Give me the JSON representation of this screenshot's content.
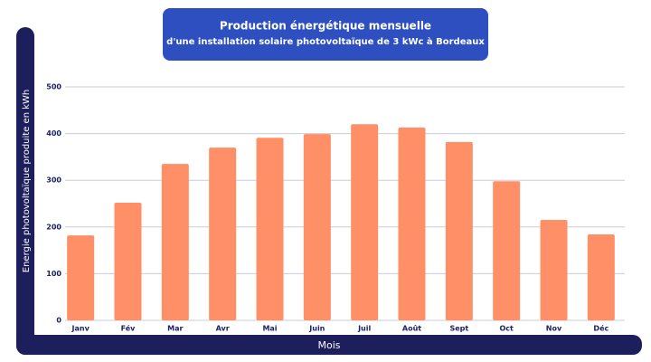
{
  "chart_data": {
    "type": "bar",
    "title": "Production énergétique mensuelle",
    "subtitle": "d'une installation solaire photovoltaïque de 3 kWc à Bordeaux",
    "y_label": "Energie photovoltaïque produite en kWh",
    "x_label": "Mois",
    "categories": [
      "Janv",
      "Fév",
      "Mar",
      "Avr",
      "Mai",
      "Juin",
      "Juil",
      "Août",
      "Sept",
      "Oct",
      "Nov",
      "Déc"
    ],
    "values": [
      182,
      252,
      335,
      370,
      391,
      399,
      420,
      413,
      382,
      298,
      215,
      184
    ],
    "color": "#ff8f66",
    "ylim": [
      0,
      500
    ],
    "yticks": [
      0,
      100,
      200,
      300,
      400,
      500
    ],
    "grid": true
  }
}
